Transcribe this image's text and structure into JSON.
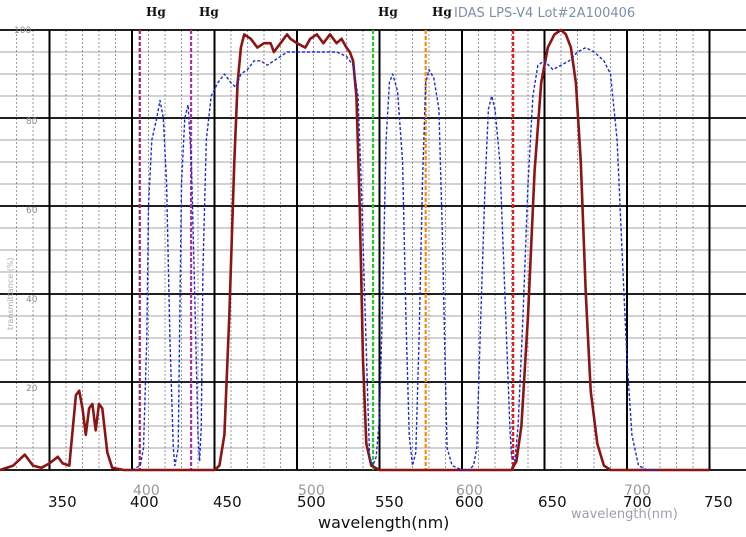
{
  "chart_data": {
    "type": "line",
    "title": "IDAS LPS-V4 Lot#2A100406",
    "title_prefix": "Hg",
    "xlabel": "wavelength(nm)",
    "xlabel_ghost": "wavelength(nm)",
    "ylabel": "transmittance (%)",
    "xlim": [
      320,
      750
    ],
    "ylim": [
      0,
      100
    ],
    "grid": true,
    "xtick_labels": [
      "350",
      "400",
      "450",
      "500",
      "550",
      "600",
      "650",
      "700",
      "750"
    ],
    "xtick_ghost_labels": [
      "400",
      "500",
      "600",
      "700"
    ],
    "ytick_labels": [
      "20",
      "40",
      "60",
      "80",
      "100"
    ],
    "hg_labels": [
      "Hg",
      "Hg",
      "Hg"
    ],
    "hg_lines": [
      {
        "wavelength": 404.7,
        "color": "#a0206a"
      },
      {
        "wavelength": 435.8,
        "color": "#b030a0"
      },
      {
        "wavelength": 546.1,
        "color": "#22cc22"
      },
      {
        "wavelength": 578.0,
        "color": "#ff8800"
      },
      {
        "wavelength": 631.0,
        "color": "#e01818"
      }
    ],
    "series": [
      {
        "color": "#8b1414",
        "style": "solid",
        "points": [
          [
            320,
            0
          ],
          [
            328,
            1
          ],
          [
            335,
            3.5
          ],
          [
            340,
            1
          ],
          [
            345,
            0.5
          ],
          [
            350,
            1.5
          ],
          [
            355,
            3
          ],
          [
            358,
            1.5
          ],
          [
            362,
            1
          ],
          [
            366,
            17
          ],
          [
            368,
            18
          ],
          [
            370,
            14
          ],
          [
            372,
            8
          ],
          [
            374,
            14
          ],
          [
            376,
            15
          ],
          [
            378,
            9
          ],
          [
            380,
            15
          ],
          [
            382,
            14
          ],
          [
            385,
            4
          ],
          [
            388,
            0.5
          ],
          [
            395,
            0
          ],
          [
            400,
            0
          ],
          [
            410,
            0
          ],
          [
            420,
            0
          ],
          [
            430,
            0
          ],
          [
            440,
            0
          ],
          [
            450,
            0
          ],
          [
            453,
            1
          ],
          [
            456,
            8
          ],
          [
            459,
            35
          ],
          [
            462,
            70
          ],
          [
            464,
            88
          ],
          [
            466,
            96
          ],
          [
            468,
            99
          ],
          [
            472,
            98
          ],
          [
            476,
            96
          ],
          [
            480,
            97
          ],
          [
            484,
            97
          ],
          [
            486,
            95
          ],
          [
            490,
            97
          ],
          [
            494,
            99
          ],
          [
            496,
            98
          ],
          [
            500,
            97
          ],
          [
            505,
            96
          ],
          [
            508,
            98
          ],
          [
            512,
            99
          ],
          [
            516,
            97
          ],
          [
            520,
            99
          ],
          [
            524,
            97
          ],
          [
            527,
            98
          ],
          [
            530,
            96
          ],
          [
            532,
            95
          ],
          [
            534,
            93
          ],
          [
            536,
            85
          ],
          [
            538,
            60
          ],
          [
            540,
            25
          ],
          [
            542,
            6
          ],
          [
            545,
            1
          ],
          [
            550,
            0
          ],
          [
            560,
            0
          ],
          [
            570,
            0
          ],
          [
            580,
            0
          ],
          [
            590,
            0
          ],
          [
            600,
            0
          ],
          [
            610,
            0
          ],
          [
            620,
            0
          ],
          [
            630,
            0
          ],
          [
            633,
            2
          ],
          [
            636,
            10
          ],
          [
            640,
            35
          ],
          [
            644,
            68
          ],
          [
            648,
            88
          ],
          [
            652,
            96
          ],
          [
            656,
            99
          ],
          [
            660,
            100
          ],
          [
            663,
            99
          ],
          [
            666,
            96
          ],
          [
            669,
            88
          ],
          [
            672,
            70
          ],
          [
            675,
            40
          ],
          [
            678,
            18
          ],
          [
            682,
            6
          ],
          [
            686,
            1
          ],
          [
            690,
            0
          ],
          [
            700,
            0
          ],
          [
            720,
            0
          ],
          [
            750,
            0
          ]
        ]
      },
      {
        "color": "#1a2cd0",
        "style": "dashed",
        "points": [
          [
            400,
            0
          ],
          [
            405,
            1
          ],
          [
            407,
            5
          ],
          [
            409,
            30
          ],
          [
            410,
            60
          ],
          [
            412,
            75
          ],
          [
            415,
            80
          ],
          [
            417,
            84
          ],
          [
            419,
            80
          ],
          [
            421,
            65
          ],
          [
            423,
            30
          ],
          [
            425,
            5
          ],
          [
            426,
            1
          ],
          [
            428,
            5
          ],
          [
            429,
            35
          ],
          [
            430,
            65
          ],
          [
            432,
            80
          ],
          [
            434,
            83
          ],
          [
            436,
            70
          ],
          [
            438,
            40
          ],
          [
            440,
            8
          ],
          [
            441,
            2
          ],
          [
            442,
            10
          ],
          [
            443,
            45
          ],
          [
            445,
            75
          ],
          [
            448,
            85
          ],
          [
            452,
            88
          ],
          [
            456,
            90
          ],
          [
            460,
            88
          ],
          [
            463,
            87
          ],
          [
            466,
            90
          ],
          [
            470,
            91
          ],
          [
            474,
            93
          ],
          [
            478,
            93
          ],
          [
            482,
            92
          ],
          [
            486,
            93
          ],
          [
            490,
            94
          ],
          [
            494,
            95
          ],
          [
            500,
            95
          ],
          [
            506,
            95
          ],
          [
            512,
            95
          ],
          [
            518,
            95
          ],
          [
            524,
            95
          ],
          [
            530,
            94
          ],
          [
            534,
            92
          ],
          [
            537,
            85
          ],
          [
            539,
            65
          ],
          [
            541,
            40
          ],
          [
            543,
            15
          ],
          [
            544,
            3
          ],
          [
            546,
            1
          ],
          [
            548,
            3
          ],
          [
            550,
            12
          ],
          [
            552,
            40
          ],
          [
            554,
            75
          ],
          [
            556,
            88
          ],
          [
            558,
            90
          ],
          [
            561,
            86
          ],
          [
            564,
            70
          ],
          [
            566,
            35
          ],
          [
            568,
            8
          ],
          [
            570,
            1
          ],
          [
            572,
            4
          ],
          [
            574,
            30
          ],
          [
            576,
            65
          ],
          [
            578,
            88
          ],
          [
            580,
            91
          ],
          [
            583,
            89
          ],
          [
            586,
            82
          ],
          [
            588,
            55
          ],
          [
            590,
            20
          ],
          [
            591,
            5
          ],
          [
            594,
            1
          ],
          [
            600,
            0
          ],
          [
            604,
            0
          ],
          [
            607,
            1
          ],
          [
            609,
            5
          ],
          [
            611,
            30
          ],
          [
            614,
            65
          ],
          [
            616,
            82
          ],
          [
            618,
            85
          ],
          [
            620,
            82
          ],
          [
            623,
            70
          ],
          [
            626,
            40
          ],
          [
            629,
            10
          ],
          [
            630,
            3
          ],
          [
            632,
            2
          ],
          [
            634,
            10
          ],
          [
            637,
            35
          ],
          [
            640,
            65
          ],
          [
            643,
            85
          ],
          [
            646,
            92
          ],
          [
            650,
            93
          ],
          [
            655,
            91
          ],
          [
            660,
            92
          ],
          [
            665,
            93
          ],
          [
            670,
            95
          ],
          [
            675,
            96
          ],
          [
            680,
            95
          ],
          [
            686,
            93
          ],
          [
            690,
            90
          ],
          [
            694,
            75
          ],
          [
            697,
            50
          ],
          [
            700,
            25
          ],
          [
            703,
            8
          ],
          [
            707,
            1
          ],
          [
            712,
            0
          ],
          [
            720,
            0
          ]
        ]
      }
    ]
  }
}
